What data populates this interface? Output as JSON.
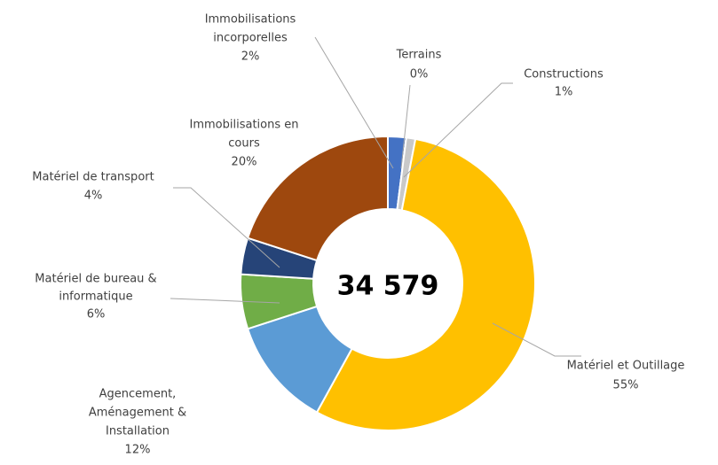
{
  "chart_data": {
    "type": "donut",
    "center_text": "34 579",
    "categories": [
      [
        "Immobilisations",
        "incorporelles"
      ],
      [
        "Terrains"
      ],
      [
        "Constructions"
      ],
      [
        "Matériel et Outillage"
      ],
      [
        "Agencement,",
        "Aménagement &",
        "Installation"
      ],
      [
        "Matériel de bureau &",
        "informatique"
      ],
      [
        "Matériel de transport"
      ],
      [
        "Immobilisations en",
        "cours"
      ]
    ],
    "values": [
      2,
      0,
      1,
      55,
      12,
      6,
      4,
      20
    ],
    "value_labels": [
      "2%",
      "0%",
      "1%",
      "55%",
      "12%",
      "6%",
      "4%",
      "20%"
    ],
    "colors": [
      "#4472c4",
      "#a5a5a5",
      "#c9c9c9",
      "#ffc000",
      "#5b9bd5",
      "#70ad47",
      "#264478",
      "#9e480e"
    ]
  }
}
